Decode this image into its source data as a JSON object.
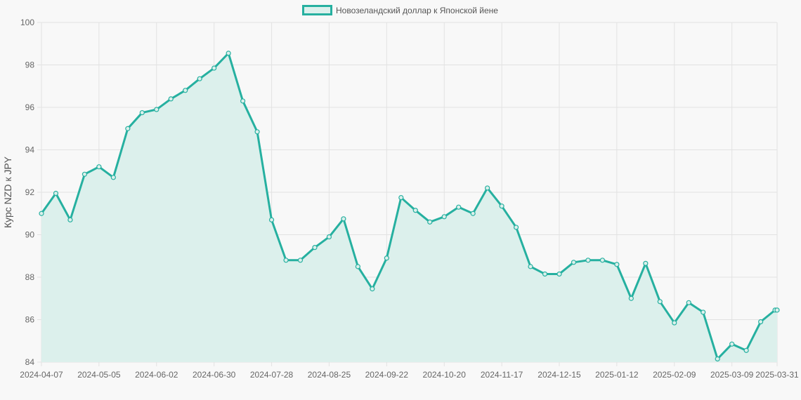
{
  "chart_data": {
    "type": "area",
    "ylabel": "Курс NZD к JPY",
    "ylim": [
      84,
      100
    ],
    "y_ticks": [
      84,
      86,
      88,
      90,
      92,
      94,
      96,
      98,
      100
    ],
    "x_tick_labels": [
      "2024-04-07",
      "2024-05-05",
      "2024-06-02",
      "2024-06-30",
      "2024-07-28",
      "2024-08-25",
      "2024-09-22",
      "2024-10-20",
      "2024-11-17",
      "2024-12-15",
      "2025-01-12",
      "2025-02-09",
      "2025-03-09",
      "2025-03-31"
    ],
    "grid": true,
    "legend_position": "top-center",
    "colors": {
      "line": "#26b0a0",
      "fill": "#dcf0ec",
      "grid": "#e2e2e2",
      "background": "#f8f8f8"
    },
    "series": [
      {
        "name": "Новозеландский доллар к Японской йене",
        "x": [
          "2024-04-07",
          "2024-04-14",
          "2024-04-21",
          "2024-04-28",
          "2024-05-05",
          "2024-05-12",
          "2024-05-19",
          "2024-05-26",
          "2024-06-02",
          "2024-06-09",
          "2024-06-16",
          "2024-06-23",
          "2024-06-30",
          "2024-07-07",
          "2024-07-14",
          "2024-07-21",
          "2024-07-28",
          "2024-08-04",
          "2024-08-11",
          "2024-08-18",
          "2024-08-25",
          "2024-09-01",
          "2024-09-08",
          "2024-09-15",
          "2024-09-22",
          "2024-09-29",
          "2024-10-06",
          "2024-10-13",
          "2024-10-20",
          "2024-10-27",
          "2024-11-03",
          "2024-11-10",
          "2024-11-17",
          "2024-11-24",
          "2024-12-01",
          "2024-12-08",
          "2024-12-15",
          "2024-12-22",
          "2024-12-29",
          "2025-01-05",
          "2025-01-12",
          "2025-01-19",
          "2025-01-26",
          "2025-02-02",
          "2025-02-09",
          "2025-02-16",
          "2025-02-23",
          "2025-03-02",
          "2025-03-09",
          "2025-03-16",
          "2025-03-23",
          "2025-03-30",
          "2025-03-31"
        ],
        "values": [
          91.0,
          91.95,
          90.7,
          92.85,
          93.2,
          92.7,
          95.0,
          95.75,
          95.9,
          96.4,
          96.8,
          97.35,
          97.85,
          98.55,
          96.3,
          94.85,
          90.7,
          88.8,
          88.8,
          89.4,
          89.9,
          90.75,
          88.5,
          87.45,
          88.9,
          91.75,
          91.15,
          90.6,
          90.85,
          91.3,
          91.0,
          92.2,
          91.35,
          90.35,
          88.5,
          88.15,
          88.15,
          88.7,
          88.8,
          88.8,
          88.6,
          87.0,
          88.65,
          86.85,
          85.85,
          86.8,
          86.35,
          84.15,
          84.85,
          84.55,
          85.9,
          86.45,
          86.45
        ]
      }
    ]
  }
}
